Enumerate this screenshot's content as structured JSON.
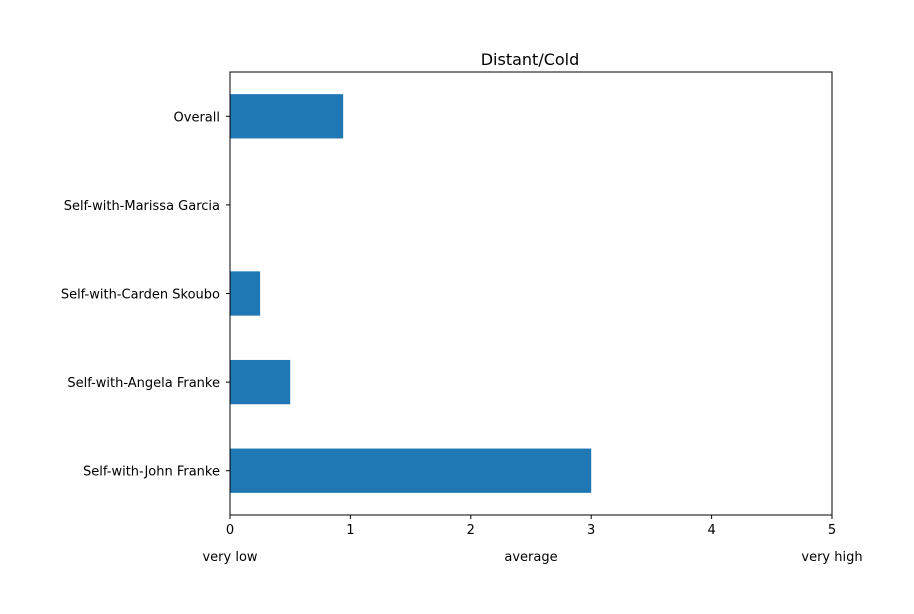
{
  "chart_data": {
    "type": "bar",
    "orientation": "horizontal",
    "title": "Distant/Cold",
    "categories": [
      "Overall",
      "Self-with-Marissa Garcia",
      "Self-with-Carden Skoubo",
      "Self-with-Angela Franke",
      "Self-with-John Franke"
    ],
    "values": [
      0.94,
      0,
      0.25,
      0.5,
      3.0
    ],
    "xlim": [
      0,
      5
    ],
    "xticks": [
      "0",
      "1",
      "2",
      "3",
      "4",
      "5"
    ],
    "scale_labels": [
      "very low",
      "average",
      "very high"
    ],
    "bar_color": "#1f77b4",
    "grid": false,
    "legend": false
  }
}
